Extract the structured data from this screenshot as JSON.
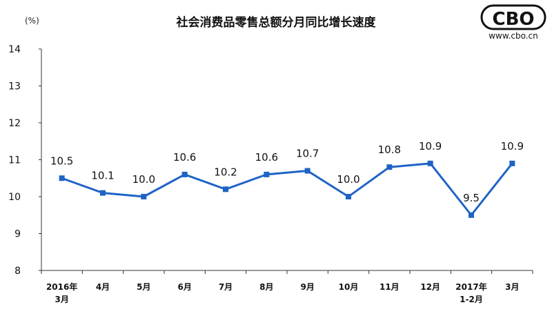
{
  "chart_data": {
    "type": "line",
    "title": "社会消费品零售总额分月同比增长速度",
    "unit": "(%)",
    "categories": [
      [
        "2016年",
        "3月"
      ],
      [
        "4月"
      ],
      [
        "5月"
      ],
      [
        "6月"
      ],
      [
        "7月"
      ],
      [
        "8月"
      ],
      [
        "9月"
      ],
      [
        "10月"
      ],
      [
        "11月"
      ],
      [
        "12月"
      ],
      [
        "2017年",
        "1-2月"
      ],
      [
        "3月"
      ]
    ],
    "series": [
      {
        "values": [
          10.5,
          10.1,
          10.0,
          10.6,
          10.2,
          10.6,
          10.7,
          10.0,
          10.8,
          10.9,
          9.5,
          10.9
        ]
      }
    ],
    "data_labels": [
      "10.5",
      "10.1",
      "10.0",
      "10.6",
      "10.2",
      "10.6",
      "10.7",
      "10.0",
      "10.8",
      "10.9",
      "9.5",
      "10.9"
    ],
    "yticks": [
      "8",
      "9",
      "10",
      "11",
      "12",
      "13",
      "14"
    ],
    "ylim": [
      8,
      14
    ],
    "grid": false,
    "line_color": "#1f63c6"
  },
  "watermark": {
    "logo": "CBO",
    "url": "www.cbo.cn"
  }
}
